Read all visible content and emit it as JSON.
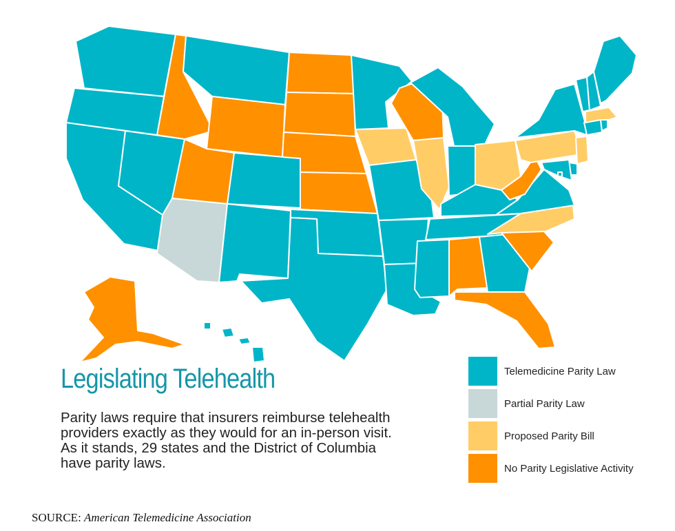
{
  "title": "Legislating Telehealth",
  "description_lines": [
    "Parity laws require that insurers reimburse telehealth",
    "providers exactly as they would for an in-person visit.",
    "As it stands, 29 states and the District of Columbia",
    "have parity laws."
  ],
  "legend": [
    {
      "label": "Telemedicine Parity Law",
      "color": "#00b5c8"
    },
    {
      "label": "Partial Parity Law",
      "color": "#c8d7d8"
    },
    {
      "label": "Proposed Parity Bill",
      "color": "#ffcc66"
    },
    {
      "label": "No Parity Legislative Activity",
      "color": "#ff9000"
    }
  ],
  "source": {
    "prefix": "SOURCE:",
    "name": "American Telemedicine Association"
  },
  "map": {
    "colors": {
      "parity": "#00b5c8",
      "partial": "#c8d7d8",
      "proposed": "#ffcc66",
      "none": "#ff9000"
    },
    "states": {
      "WA": "parity",
      "OR": "parity",
      "CA": "parity",
      "NV": "parity",
      "ID": "none",
      "MT": "parity",
      "WY": "none",
      "UT": "none",
      "AZ": "partial",
      "CO": "parity",
      "NM": "parity",
      "ND": "none",
      "SD": "none",
      "NE": "none",
      "KS": "none",
      "OK": "parity",
      "TX": "parity",
      "MN": "parity",
      "IA": "proposed",
      "MO": "parity",
      "AR": "parity",
      "LA": "parity",
      "WI": "none",
      "IL": "proposed",
      "MI": "parity",
      "IN": "parity",
      "OH": "proposed",
      "KY": "parity",
      "TN": "parity",
      "MS": "parity",
      "AL": "none",
      "GA": "parity",
      "FL": "none",
      "SC": "none",
      "NC": "proposed",
      "VA": "parity",
      "WV": "none",
      "PA": "proposed",
      "NY": "parity",
      "VT": "parity",
      "NH": "parity",
      "ME": "parity",
      "MA": "proposed",
      "CT": "parity",
      "RI": "parity",
      "NJ": "proposed",
      "DE": "parity",
      "MD": "parity",
      "DC": "parity",
      "AK": "none",
      "HI": "parity"
    }
  }
}
